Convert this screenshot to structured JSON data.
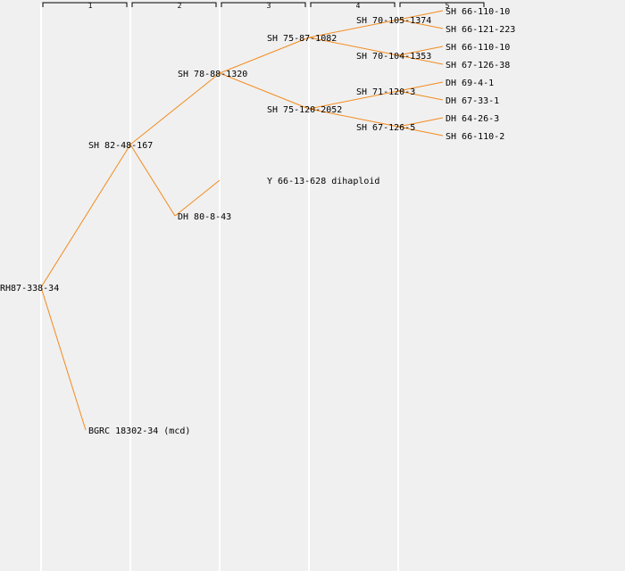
{
  "generations": [
    "1",
    "2",
    "3",
    "4",
    "5"
  ],
  "colors": {
    "edge": "#f28c1f",
    "background": "#f0f0f0",
    "column_line": "#ffffff"
  },
  "nodes": [
    {
      "id": "n0",
      "label": "RH87-338-34"
    },
    {
      "id": "n1",
      "label": "SH 82-48-167"
    },
    {
      "id": "n2",
      "label": "BGRC 18302-34 (mcd)"
    },
    {
      "id": "n3",
      "label": "SH 78-88-1320"
    },
    {
      "id": "n4",
      "label": "DH 80-8-43"
    },
    {
      "id": "n5",
      "label": "SH 75-87-1082"
    },
    {
      "id": "n6",
      "label": "SH 75-120-2052"
    },
    {
      "id": "n7",
      "label": "Y 66-13-628 dihaploid"
    },
    {
      "id": "n8",
      "label": "SH 70-105-1374"
    },
    {
      "id": "n9",
      "label": "SH 70-104-1353"
    },
    {
      "id": "n10",
      "label": "SH 71-120-3"
    },
    {
      "id": "n11",
      "label": "SH 67-126-5"
    },
    {
      "id": "n12",
      "label": "SH 66-110-10"
    },
    {
      "id": "n13",
      "label": "SH 66-121-223"
    },
    {
      "id": "n14",
      "label": "SH 66-110-10"
    },
    {
      "id": "n15",
      "label": "SH 67-126-38"
    },
    {
      "id": "n16",
      "label": "DH 69-4-1"
    },
    {
      "id": "n17",
      "label": "DH 67-33-1"
    },
    {
      "id": "n18",
      "label": "DH 64-26-3"
    },
    {
      "id": "n19",
      "label": "SH 66-110-2"
    }
  ],
  "edges": [
    [
      "n0",
      "n1"
    ],
    [
      "n0",
      "n2"
    ],
    [
      "n1",
      "n3"
    ],
    [
      "n1",
      "n4"
    ],
    [
      "n3",
      "n5"
    ],
    [
      "n3",
      "n6"
    ],
    [
      "n4",
      "n7"
    ],
    [
      "n5",
      "n8"
    ],
    [
      "n5",
      "n9"
    ],
    [
      "n6",
      "n10"
    ],
    [
      "n6",
      "n11"
    ],
    [
      "n8",
      "n12"
    ],
    [
      "n8",
      "n13"
    ],
    [
      "n9",
      "n14"
    ],
    [
      "n9",
      "n15"
    ],
    [
      "n10",
      "n16"
    ],
    [
      "n10",
      "n17"
    ],
    [
      "n11",
      "n18"
    ],
    [
      "n11",
      "n19"
    ]
  ]
}
